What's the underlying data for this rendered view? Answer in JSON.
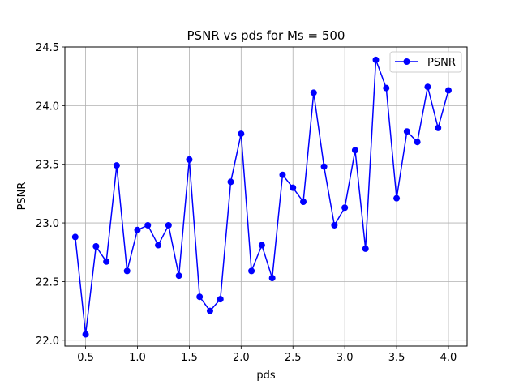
{
  "chart_data": {
    "type": "line",
    "title": "PSNR vs pds for Ms = 500",
    "xlabel": "pds",
    "ylabel": "PSNR",
    "xlim": [
      0.3,
      4.18
    ],
    "ylim": [
      21.95,
      24.5
    ],
    "xticks": [
      0.5,
      1.0,
      1.5,
      2.0,
      2.5,
      3.0,
      3.5,
      4.0
    ],
    "xtick_labels": [
      "0.5",
      "1.0",
      "1.5",
      "2.0",
      "2.5",
      "3.0",
      "3.5",
      "4.0"
    ],
    "yticks": [
      22.0,
      22.5,
      23.0,
      23.5,
      24.0,
      24.5
    ],
    "ytick_labels": [
      "22.0",
      "22.5",
      "23.0",
      "23.5",
      "24.0",
      "24.5"
    ],
    "grid": true,
    "legend_position": "top-right",
    "series": [
      {
        "name": "PSNR",
        "color": "#0000ff",
        "marker": "circle",
        "x": [
          0.4,
          0.5,
          0.6,
          0.7,
          0.8,
          0.9,
          1.0,
          1.1,
          1.2,
          1.3,
          1.4,
          1.5,
          1.6,
          1.7,
          1.8,
          1.9,
          2.0,
          2.1,
          2.2,
          2.3,
          2.4,
          2.5,
          2.6,
          2.7,
          2.8,
          2.9,
          3.0,
          3.1,
          3.2,
          3.3,
          3.4,
          3.5,
          3.6,
          3.7,
          3.8,
          3.9,
          4.0
        ],
        "y": [
          22.88,
          22.05,
          22.8,
          22.67,
          23.49,
          22.59,
          22.94,
          22.98,
          22.81,
          22.98,
          22.55,
          23.54,
          22.37,
          22.25,
          22.35,
          23.35,
          23.76,
          22.59,
          22.81,
          22.53,
          23.41,
          23.3,
          23.18,
          24.11,
          23.48,
          22.98,
          23.13,
          23.62,
          22.78,
          24.39,
          24.15,
          23.21,
          23.78,
          23.69,
          24.16,
          23.81,
          24.13
        ]
      }
    ]
  }
}
